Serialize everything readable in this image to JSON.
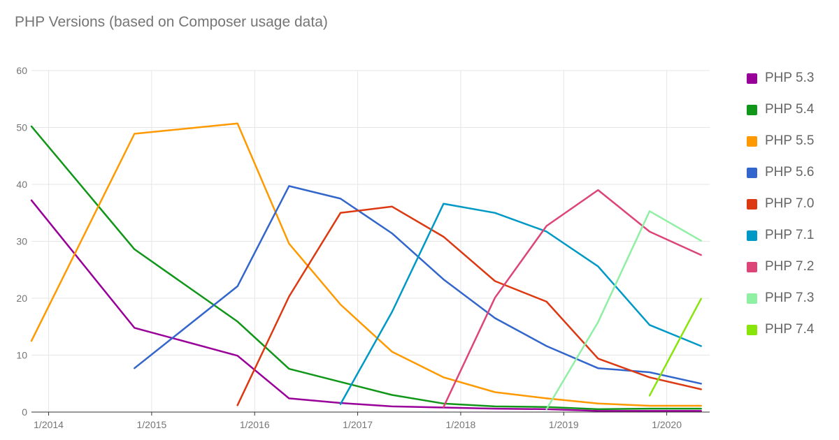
{
  "chart_data": {
    "type": "line",
    "title": "PHP Versions (based on Composer usage data)",
    "xlabel": "",
    "ylabel": "",
    "ylim": [
      0,
      60
    ],
    "y_ticks": [
      0,
      10,
      20,
      30,
      40,
      50,
      60
    ],
    "x_range": [
      "2013-11",
      "2020-06"
    ],
    "x_ticks": [
      {
        "date": "2014-01",
        "label": "1/2014"
      },
      {
        "date": "2015-01",
        "label": "1/2015"
      },
      {
        "date": "2016-01",
        "label": "1/2016"
      },
      {
        "date": "2017-01",
        "label": "1/2017"
      },
      {
        "date": "2018-01",
        "label": "1/2018"
      },
      {
        "date": "2019-01",
        "label": "1/2019"
      },
      {
        "date": "2020-01",
        "label": "1/2020"
      }
    ],
    "grid": true,
    "legend_position": "right",
    "series": [
      {
        "name": "PHP 5.3",
        "color": "#990099",
        "points": [
          [
            "2013-11",
            37.2
          ],
          [
            "2014-11",
            14.8
          ],
          [
            "2015-11",
            9.9
          ],
          [
            "2016-05",
            2.4
          ],
          [
            "2016-11",
            1.6
          ],
          [
            "2017-05",
            1.0
          ],
          [
            "2017-11",
            0.8
          ],
          [
            "2018-05",
            0.6
          ],
          [
            "2018-11",
            0.5
          ],
          [
            "2019-05",
            0.2
          ],
          [
            "2019-11",
            0.2
          ],
          [
            "2020-05",
            0.2
          ]
        ]
      },
      {
        "name": "PHP 5.4",
        "color": "#109618",
        "points": [
          [
            "2013-11",
            50.2
          ],
          [
            "2014-11",
            28.6
          ],
          [
            "2015-11",
            15.9
          ],
          [
            "2016-05",
            7.6
          ],
          [
            "2016-11",
            5.3
          ],
          [
            "2017-05",
            3.0
          ],
          [
            "2017-11",
            1.5
          ],
          [
            "2018-05",
            1.0
          ],
          [
            "2018-11",
            0.9
          ],
          [
            "2019-05",
            0.5
          ],
          [
            "2019-11",
            0.6
          ],
          [
            "2020-05",
            0.6
          ]
        ]
      },
      {
        "name": "PHP 5.5",
        "color": "#ff9900",
        "points": [
          [
            "2013-11",
            12.5
          ],
          [
            "2014-11",
            48.9
          ],
          [
            "2015-11",
            50.7
          ],
          [
            "2016-05",
            29.6
          ],
          [
            "2016-11",
            18.9
          ],
          [
            "2017-05",
            10.6
          ],
          [
            "2017-11",
            6.1
          ],
          [
            "2018-05",
            3.5
          ],
          [
            "2018-11",
            2.4
          ],
          [
            "2019-05",
            1.5
          ],
          [
            "2019-11",
            1.1
          ],
          [
            "2020-05",
            1.1
          ]
        ]
      },
      {
        "name": "PHP 5.6",
        "color": "#3366cc",
        "points": [
          [
            "2014-11",
            7.7
          ],
          [
            "2015-11",
            22.1
          ],
          [
            "2016-05",
            39.7
          ],
          [
            "2016-11",
            37.5
          ],
          [
            "2017-05",
            31.4
          ],
          [
            "2017-11",
            23.3
          ],
          [
            "2018-05",
            16.5
          ],
          [
            "2018-11",
            11.6
          ],
          [
            "2019-05",
            7.7
          ],
          [
            "2019-11",
            7.0
          ],
          [
            "2020-05",
            5.0
          ]
        ]
      },
      {
        "name": "PHP 7.0",
        "color": "#dc3912",
        "points": [
          [
            "2015-11",
            1.2
          ],
          [
            "2016-05",
            20.3
          ],
          [
            "2016-11",
            35.0
          ],
          [
            "2017-05",
            36.1
          ],
          [
            "2017-11",
            30.8
          ],
          [
            "2018-05",
            23.0
          ],
          [
            "2018-11",
            19.4
          ],
          [
            "2019-05",
            9.4
          ],
          [
            "2019-11",
            6.1
          ],
          [
            "2020-05",
            4.0
          ]
        ]
      },
      {
        "name": "PHP 7.1",
        "color": "#0099c6",
        "points": [
          [
            "2016-11",
            1.4
          ],
          [
            "2017-05",
            17.6
          ],
          [
            "2017-11",
            36.6
          ],
          [
            "2018-05",
            35.0
          ],
          [
            "2018-11",
            31.7
          ],
          [
            "2019-05",
            25.6
          ],
          [
            "2019-11",
            15.3
          ],
          [
            "2020-05",
            11.6
          ]
        ]
      },
      {
        "name": "PHP 7.2",
        "color": "#dd4477",
        "points": [
          [
            "2017-11",
            0.9
          ],
          [
            "2018-05",
            20.1
          ],
          [
            "2018-11",
            32.7
          ],
          [
            "2019-05",
            39.0
          ],
          [
            "2019-11",
            31.7
          ],
          [
            "2020-05",
            27.6
          ]
        ]
      },
      {
        "name": "PHP 7.3",
        "color": "#8ff0a4",
        "points": [
          [
            "2018-11",
            0.5
          ],
          [
            "2019-05",
            15.8
          ],
          [
            "2019-11",
            35.3
          ],
          [
            "2020-05",
            30.1
          ]
        ]
      },
      {
        "name": "PHP 7.4",
        "color": "#88e50a",
        "points": [
          [
            "2019-11",
            2.9
          ],
          [
            "2020-05",
            19.9
          ]
        ]
      }
    ]
  }
}
